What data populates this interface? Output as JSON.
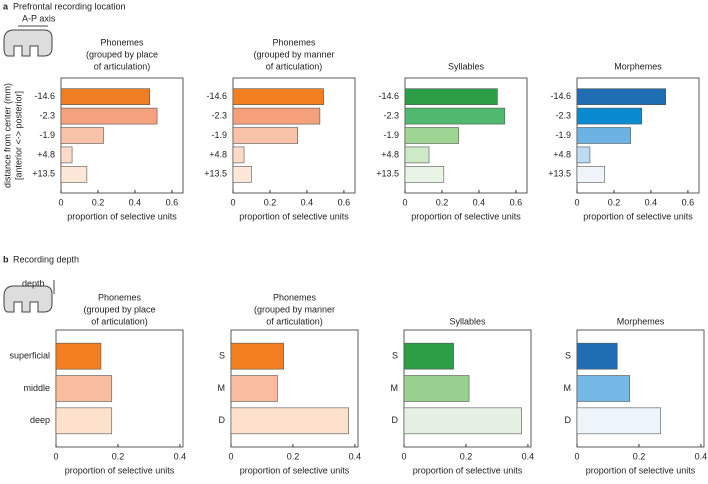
{
  "panels": [
    {
      "label": "a",
      "title": "Prefrontal recording location",
      "icon_label": "A-P axis"
    },
    {
      "label": "b",
      "title": "Recording depth",
      "icon_label": "depth"
    }
  ],
  "chart_data": [
    {
      "type": "bar",
      "orientation": "horizontal",
      "title": [
        "Phonemes",
        "(grouped by place",
        "of articulation)"
      ],
      "ylabel": [
        "distance from center (mm)",
        "[anterior <-> posterior]"
      ],
      "categories": [
        "-14.6",
        "-2.3",
        "-1.9",
        "+4.8",
        "+13.5"
      ],
      "values": [
        0.48,
        0.52,
        0.23,
        0.06,
        0.14
      ],
      "colors": [
        "#f07f24",
        "#f6a27e",
        "#f9c3aa",
        "#fcd9c8",
        "#fde7d9"
      ],
      "xlim": [
        0,
        0.66
      ],
      "xticks": [
        0,
        0.2,
        0.4,
        0.6
      ],
      "xlabel": "proportion of selective units"
    },
    {
      "type": "bar",
      "orientation": "horizontal",
      "title": [
        "Phonemes",
        "(grouped by manner",
        "of articulation)"
      ],
      "categories": [
        "-14.6",
        "-2.3",
        "-1.9",
        "+4.8",
        "+13.5"
      ],
      "values": [
        0.49,
        0.47,
        0.35,
        0.06,
        0.1
      ],
      "colors": [
        "#f47f20",
        "#f7a07c",
        "#f9c3aa",
        "#fcd9c8",
        "#fde7d9"
      ],
      "xlim": [
        0,
        0.66
      ],
      "xticks": [
        0,
        0.2,
        0.4,
        0.6
      ],
      "xlabel": "proportion of selective units"
    },
    {
      "type": "bar",
      "orientation": "horizontal",
      "title": [
        "Syllables"
      ],
      "categories": [
        "-14.6",
        "-2.3",
        "-1.9",
        "+4.8",
        "+13.5"
      ],
      "values": [
        0.5,
        0.54,
        0.29,
        0.13,
        0.21
      ],
      "colors": [
        "#2d9d46",
        "#4fba6f",
        "#9ed595",
        "#cde9c8",
        "#e8f4e5"
      ],
      "xlim": [
        0,
        0.66
      ],
      "xticks": [
        0,
        0.2,
        0.4,
        0.6
      ],
      "xlabel": "proportion of selective units"
    },
    {
      "type": "bar",
      "orientation": "horizontal",
      "title": [
        "Morphemes"
      ],
      "categories": [
        "-14.6",
        "-2.3",
        "-1.9",
        "+4.8",
        "+13.5"
      ],
      "values": [
        0.48,
        0.35,
        0.29,
        0.07,
        0.15
      ],
      "colors": [
        "#1f6eb4",
        "#0a8ad0",
        "#6cb3e4",
        "#bcdaf1",
        "#eff5fb"
      ],
      "xlim": [
        0,
        0.66
      ],
      "xticks": [
        0,
        0.2,
        0.4,
        0.6
      ],
      "xlabel": "proportion of selective units"
    },
    {
      "type": "bar",
      "orientation": "horizontal",
      "title": [
        "Phonemes",
        "(grouped by place",
        "of articulation)"
      ],
      "categories": [
        "superficial",
        "middle",
        "deep"
      ],
      "values": [
        0.145,
        0.18,
        0.18
      ],
      "colors": [
        "#f47f20",
        "#f9bca0",
        "#fde1cc"
      ],
      "xlim": [
        0,
        0.41
      ],
      "xticks": [
        0,
        0.2,
        0.4
      ],
      "xlabel": "proportion of selective units"
    },
    {
      "type": "bar",
      "orientation": "horizontal",
      "title": [
        "Phonemes",
        "(grouped by manner",
        "of articulation)"
      ],
      "categories": [
        "S",
        "M",
        "D"
      ],
      "values": [
        0.17,
        0.15,
        0.38
      ],
      "colors": [
        "#f47f20",
        "#f9bca0",
        "#fde1cc"
      ],
      "xlim": [
        0,
        0.41
      ],
      "xticks": [
        0,
        0.2,
        0.4
      ],
      "xlabel": "proportion of selective units"
    },
    {
      "type": "bar",
      "orientation": "horizontal",
      "title": [
        "Syllables"
      ],
      "categories": [
        "S",
        "M",
        "D"
      ],
      "values": [
        0.16,
        0.21,
        0.38
      ],
      "colors": [
        "#2d9d46",
        "#9bd190",
        "#e5f1e2"
      ],
      "xlim": [
        0,
        0.41
      ],
      "xticks": [
        0,
        0.2,
        0.4
      ],
      "xlabel": "proportion of selective units"
    },
    {
      "type": "bar",
      "orientation": "horizontal",
      "title": [
        "Morphemes"
      ],
      "categories": [
        "S",
        "M",
        "D"
      ],
      "values": [
        0.13,
        0.17,
        0.27
      ],
      "colors": [
        "#1f6eb4",
        "#74b8e6",
        "#eef5fb"
      ],
      "xlim": [
        0,
        0.41
      ],
      "xticks": [
        0,
        0.2,
        0.4
      ],
      "xlabel": "proportion of selective units"
    }
  ]
}
